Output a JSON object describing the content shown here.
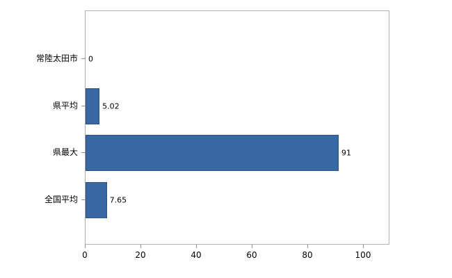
{
  "chart_data": {
    "type": "bar",
    "orientation": "horizontal",
    "title": "",
    "xlabel": "",
    "ylabel": "",
    "categories": [
      "常陸太田市",
      "県平均",
      "県最大",
      "全国平均"
    ],
    "values": [
      0,
      5.02,
      91,
      7.65
    ],
    "value_labels": [
      "0",
      "5.02",
      "91",
      "7.65"
    ],
    "xlim": [
      0,
      109.5
    ],
    "x_ticks": [
      0,
      20,
      40,
      60,
      80,
      100
    ],
    "grid": false,
    "legend": "none",
    "colors": {
      "bar_fill": "#3a68a2",
      "bar_border": "#2c507e",
      "axis_line": "#b0b0b0",
      "tick": "#8f8f8f",
      "text": "#000000",
      "background": "#ffffff"
    }
  }
}
